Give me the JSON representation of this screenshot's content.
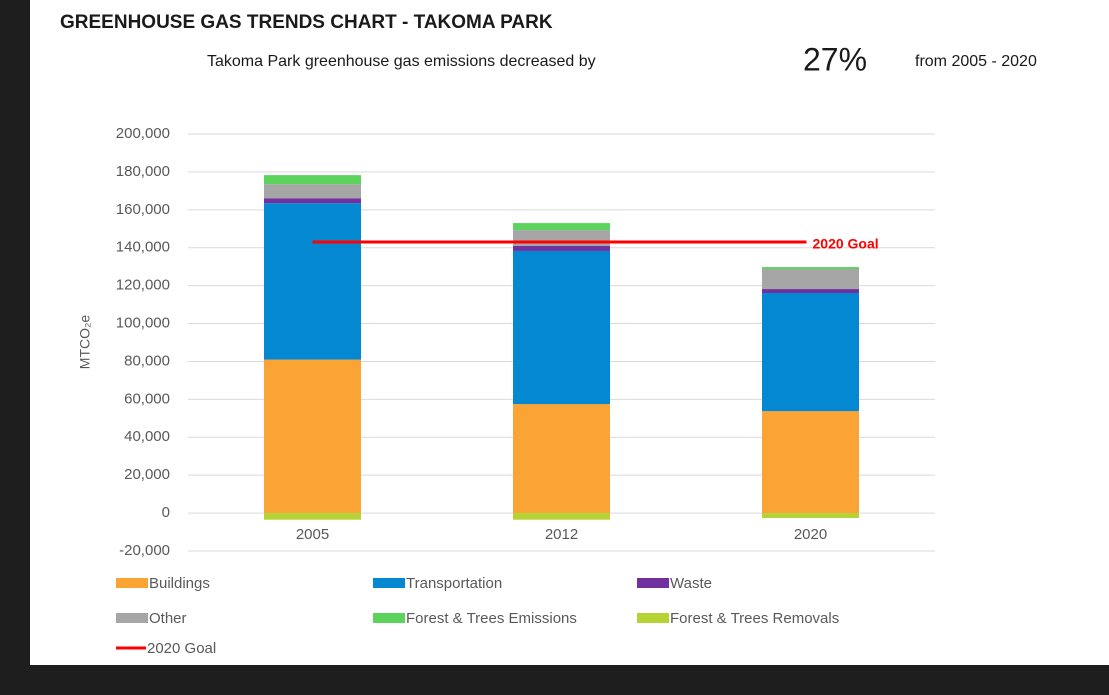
{
  "chart_data": {
    "type": "stacked-bar",
    "title": "GREENHOUSE GAS TRENDS CHART - TAKOMA PARK",
    "subtitle": [
      "Takoma Park greenhouse gas emissions decreased by",
      "27%",
      "from 2005 - 2020"
    ],
    "y_label": "MTCO₂e",
    "categories": [
      "2005",
      "2012",
      "2020"
    ],
    "series": [
      {
        "name": "Buildings",
        "color": "#f9a434",
        "values": [
          81000,
          57500,
          53800
        ]
      },
      {
        "name": "Transportation",
        "color": "#0388d1",
        "values": [
          82500,
          80800,
          62300
        ]
      },
      {
        "name": "Waste",
        "color": "#7030a0",
        "values": [
          2600,
          2600,
          2100
        ]
      },
      {
        "name": "Other",
        "color": "#a6a6a6",
        "values": [
          7400,
          8400,
          10600
        ]
      },
      {
        "name": "Forest & Trees Emissions",
        "color": "#5bd35c",
        "values": [
          4800,
          3700,
          1000
        ]
      },
      {
        "name": "Forest & Trees Removals",
        "color": "#b5d334",
        "values": [
          -3500,
          -3500,
          -2600
        ]
      }
    ],
    "goal": {
      "name": "2020 Goal",
      "value": 143000,
      "color": "#ff0000"
    },
    "ylim": [
      -20000,
      200000
    ],
    "yticks": [
      {
        "value": -20000,
        "label": "-20,000"
      },
      0,
      {
        "value": 20000,
        "label": "20,000"
      },
      {
        "value": 40000,
        "label": "40,000"
      },
      {
        "value": 60000,
        "label": "60,000"
      },
      {
        "value": 80000,
        "label": "80,000"
      },
      {
        "value": 100000,
        "label": "100,000"
      },
      {
        "value": 120000,
        "label": "120,000"
      },
      {
        "value": 140000,
        "label": "140,000"
      },
      {
        "value": 160000,
        "label": "160,000"
      },
      {
        "value": 180000,
        "label": "180,000"
      },
      {
        "value": 200000,
        "label": "200,000"
      }
    ],
    "grid": true
  }
}
